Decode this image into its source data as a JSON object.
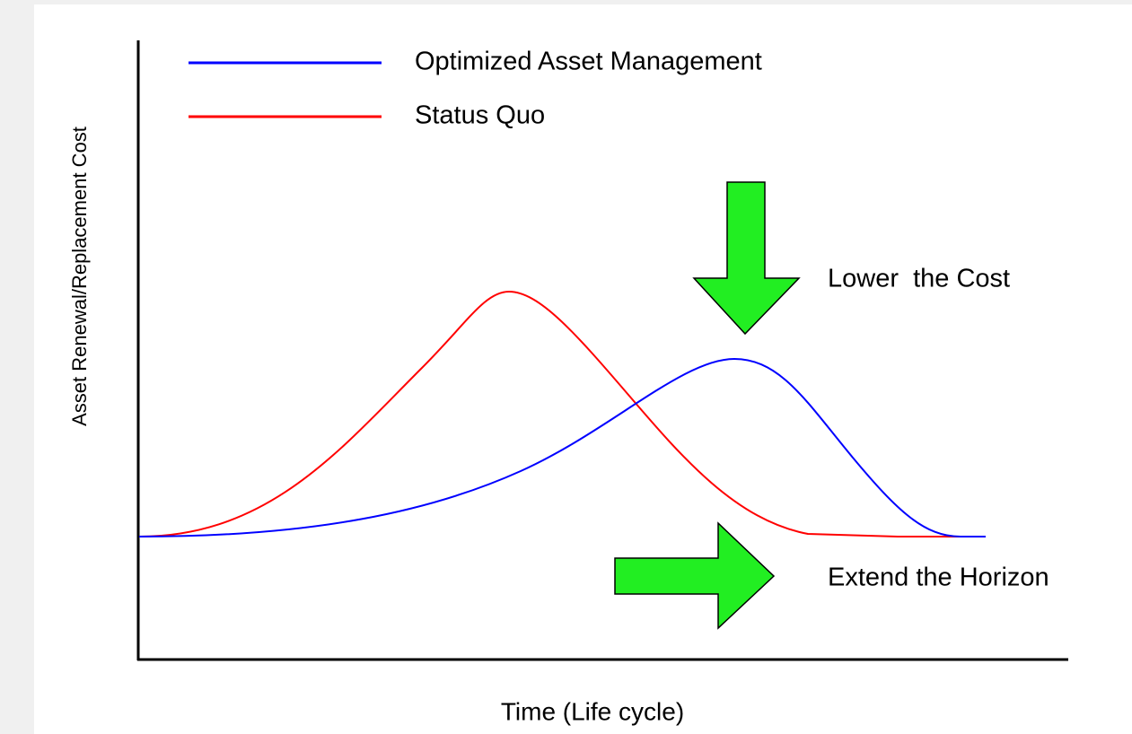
{
  "legend": {
    "items": [
      {
        "label": "Optimized Asset Management",
        "color": "#0000ff"
      },
      {
        "label": "Status Quo",
        "color": "#ff0000"
      }
    ]
  },
  "axes": {
    "y_label": "Asset Renewal/Replacement Cost",
    "x_label": "Time (Life cycle)"
  },
  "annotations": [
    "Lower  the Cost",
    "Extend the Horizon"
  ]
}
